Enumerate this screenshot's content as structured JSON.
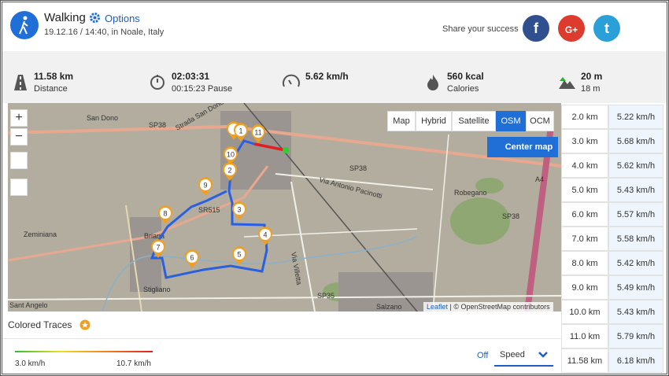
{
  "header": {
    "title": "Walking",
    "options": "Options",
    "subtitle": "19.12.16 / 14:40, in Noale, Italy",
    "share_text": "Share your success",
    "social": [
      "f",
      "G+",
      "t"
    ]
  },
  "stats": [
    {
      "value": "11.58 km",
      "label": "Distance"
    },
    {
      "value": "02:03:31",
      "label": "00:15:23 Pause"
    },
    {
      "value": "5.62 km/h",
      "label": ""
    },
    {
      "value": "560 kcal",
      "label": "Calories"
    },
    {
      "value": "20 m",
      "label": "18 m"
    }
  ],
  "map": {
    "zoom_in": "+",
    "zoom_out": "−",
    "layers": [
      "Map",
      "Hybrid",
      "Satellite",
      "OSM",
      "OCM"
    ],
    "active_layer": "OSM",
    "center_map": "Center map",
    "attribution_link": "Leaflet",
    "attribution": "| © OpenStreetMap contributors",
    "place_labels": [
      "San Dono",
      "SP38",
      "Strada San Dono",
      "SP38",
      "Via Antonio Pacinotti",
      "SR515",
      "Robegano",
      "SP38",
      "Zeminiana",
      "Briana",
      "Via Villetta",
      "Stigliano",
      "Sant Angelo",
      "SP35",
      "Salzano",
      "A4"
    ],
    "markers": [
      "1",
      "2",
      "3",
      "4",
      "5",
      "6",
      "7",
      "8",
      "9",
      "10",
      "11"
    ]
  },
  "splits": {
    "rows": [
      [
        "2.0 km",
        "5.22 km/h"
      ],
      [
        "3.0 km",
        "5.68 km/h"
      ],
      [
        "4.0 km",
        "5.62 km/h"
      ],
      [
        "5.0 km",
        "5.43 km/h"
      ],
      [
        "6.0 km",
        "5.57 km/h"
      ],
      [
        "7.0 km",
        "5.58 km/h"
      ],
      [
        "8.0 km",
        "5.42 km/h"
      ],
      [
        "9.0 km",
        "5.49 km/h"
      ],
      [
        "10.0 km",
        "5.43 km/h"
      ],
      [
        "11.0 km",
        "5.79 km/h"
      ],
      [
        "11.58 km",
        "6.18 km/h"
      ]
    ]
  },
  "traces": {
    "title": "Colored Traces",
    "min_label": "3.0 km/h",
    "max_label": "10.7 km/h",
    "off": "Off",
    "mode": "Speed"
  }
}
